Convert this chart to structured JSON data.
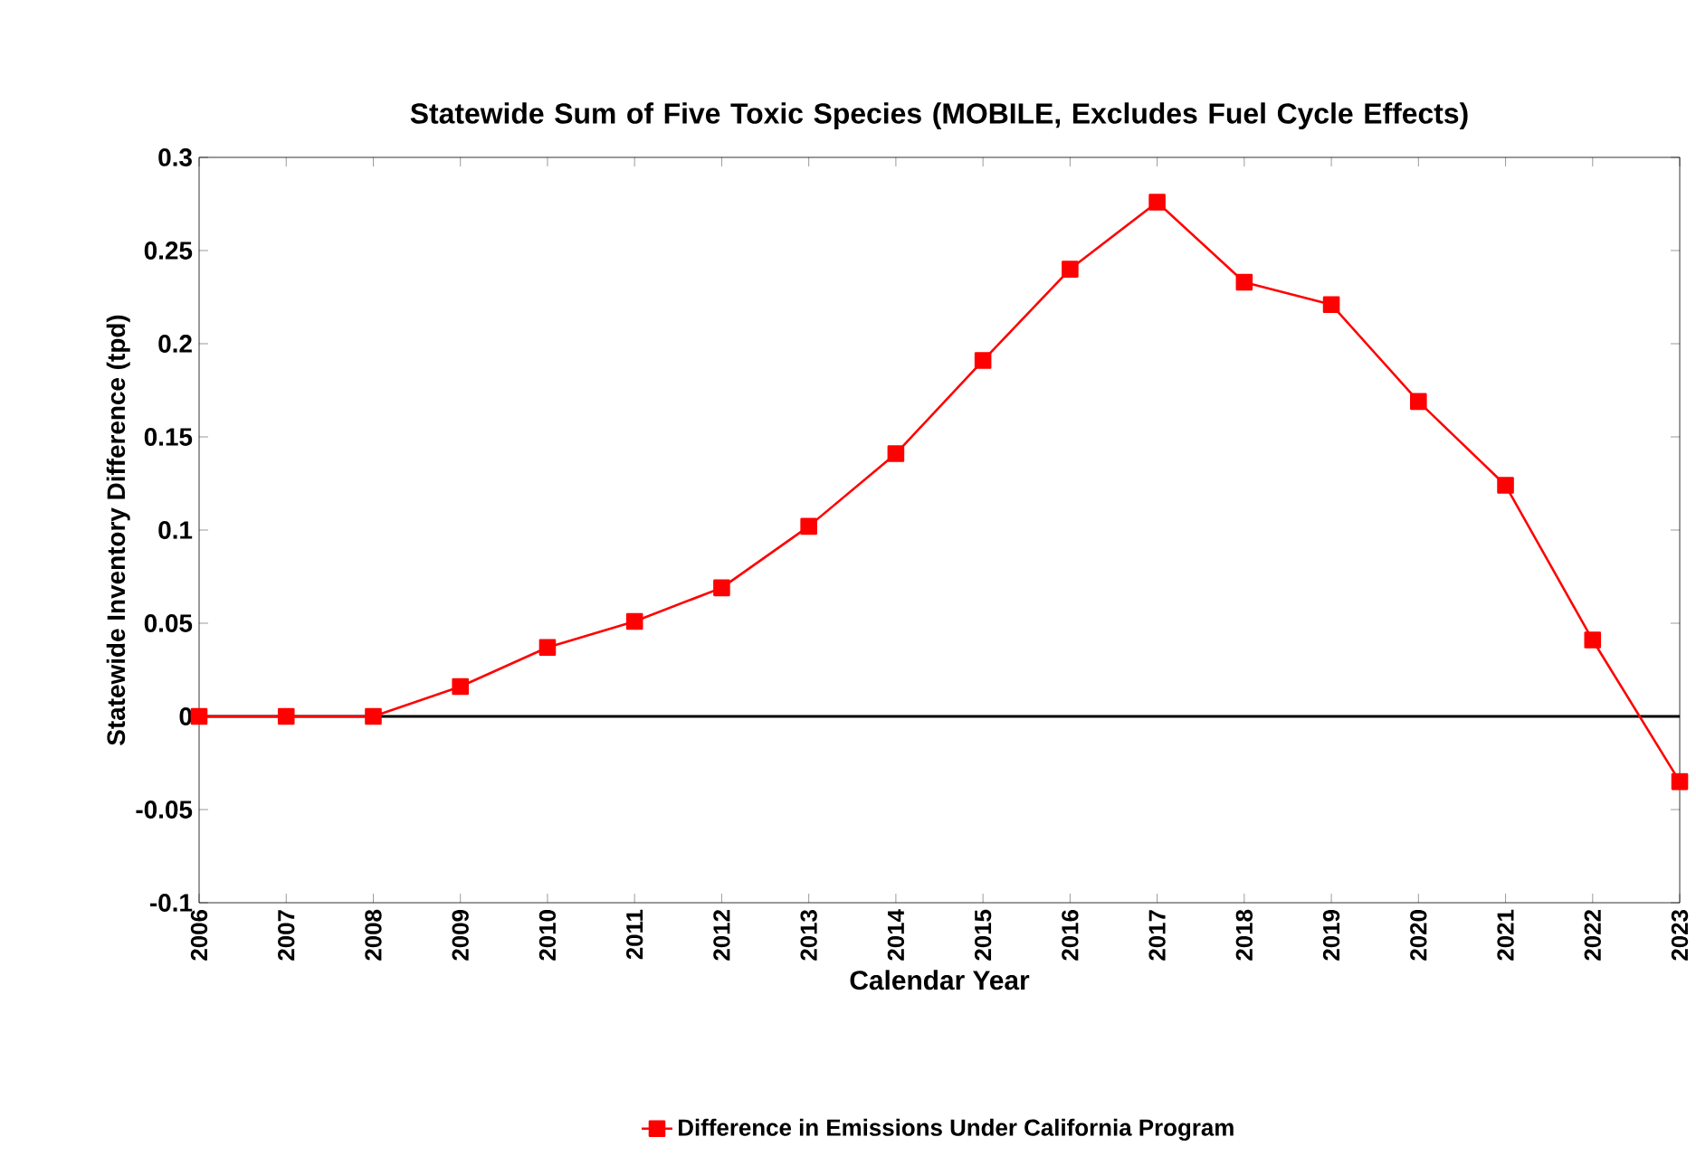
{
  "chart_data": {
    "type": "line",
    "title": "Statewide Sum of Five Toxic Species (MOBILE, Excludes Fuel Cycle Effects)",
    "xlabel": "Calendar Year",
    "ylabel": "Statewide Inventory Difference (tpd)",
    "categories": [
      "2006",
      "2007",
      "2008",
      "2009",
      "2010",
      "2011",
      "2012",
      "2013",
      "2014",
      "2015",
      "2016",
      "2017",
      "2018",
      "2019",
      "2020",
      "2021",
      "2022",
      "2023"
    ],
    "series": [
      {
        "name": "Difference in Emissions Under California Program",
        "color": "#ff0000",
        "values": [
          0,
          0,
          0,
          0.016,
          0.037,
          0.051,
          0.069,
          0.102,
          0.141,
          0.191,
          0.24,
          0.276,
          0.233,
          0.221,
          0.169,
          0.124,
          0.041,
          -0.035
        ]
      }
    ],
    "ylim": [
      -0.1,
      0.3
    ],
    "yticks": [
      -0.1,
      -0.05,
      0,
      0.05,
      0.1,
      0.15,
      0.2,
      0.25,
      0.3
    ],
    "ref_lines": [
      {
        "axis": "y",
        "value": 0,
        "color": "#000000"
      }
    ],
    "grid": false,
    "legend": "bottom",
    "marker": "square",
    "line_style": "solid"
  }
}
